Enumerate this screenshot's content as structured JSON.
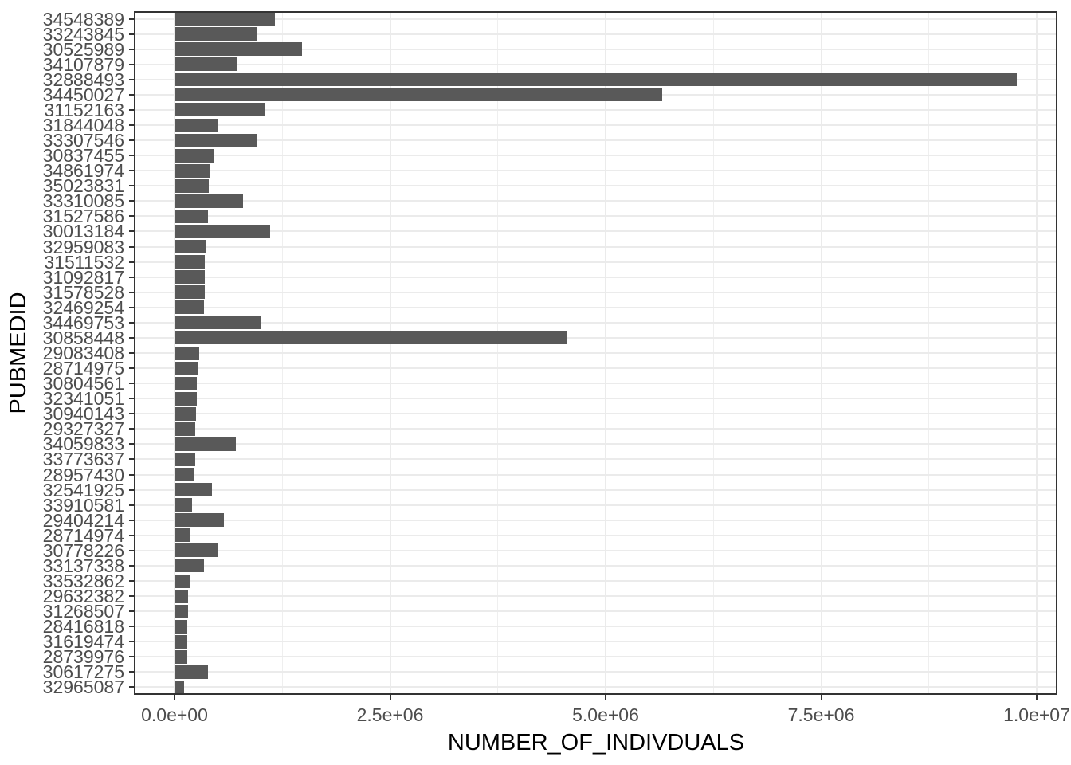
{
  "chart_data": {
    "type": "bar",
    "orientation": "horizontal",
    "title": "",
    "xlabel": "NUMBER_OF_INDIVDUALS",
    "ylabel": "PUBMEDID",
    "xlim": [
      -471000,
      10243000
    ],
    "grid": true,
    "legend": "none",
    "x_ticks": [
      {
        "value": 0,
        "label": "0.0e+00"
      },
      {
        "value": 2500000,
        "label": "2.5e+06"
      },
      {
        "value": 5000000,
        "label": "5.0e+06"
      },
      {
        "value": 7500000,
        "label": "7.5e+06"
      },
      {
        "value": 10000000,
        "label": "1.0e+07"
      }
    ],
    "x_minor_ticks": [
      1250000,
      3750000,
      6250000,
      8750000
    ],
    "categories": [
      "34548389",
      "33243845",
      "30525989",
      "34107879",
      "32888493",
      "34450027",
      "31152163",
      "31844048",
      "33307546",
      "30837455",
      "34861974",
      "35023831",
      "33310085",
      "31527586",
      "30013184",
      "32959083",
      "31511532",
      "31092817",
      "31578528",
      "32469254",
      "34469753",
      "30858448",
      "29083408",
      "28714975",
      "30804561",
      "32341051",
      "30940143",
      "29327327",
      "34059833",
      "33773637",
      "28957430",
      "32541925",
      "33910581",
      "29404214",
      "28714974",
      "30778226",
      "33137338",
      "33532862",
      "29632382",
      "31268507",
      "28416818",
      "31619474",
      "28739976",
      "30617275",
      "32965087"
    ],
    "values": [
      1160000,
      958000,
      1480000,
      730000,
      9770000,
      5660000,
      1047000,
      508000,
      964000,
      462000,
      413000,
      395000,
      797000,
      390000,
      1112000,
      358000,
      348000,
      348000,
      348000,
      342000,
      1005000,
      4550000,
      287000,
      277000,
      259000,
      256000,
      250000,
      240000,
      712000,
      237000,
      231000,
      434000,
      200000,
      570000,
      182000,
      505000,
      342000,
      176000,
      157000,
      157000,
      145000,
      145000,
      145000,
      388000,
      108000
    ],
    "bar_color": "#595959",
    "grid_color": "#EBEBEB",
    "axis_text_color": "#4D4D4D",
    "border_color": "#333333"
  }
}
